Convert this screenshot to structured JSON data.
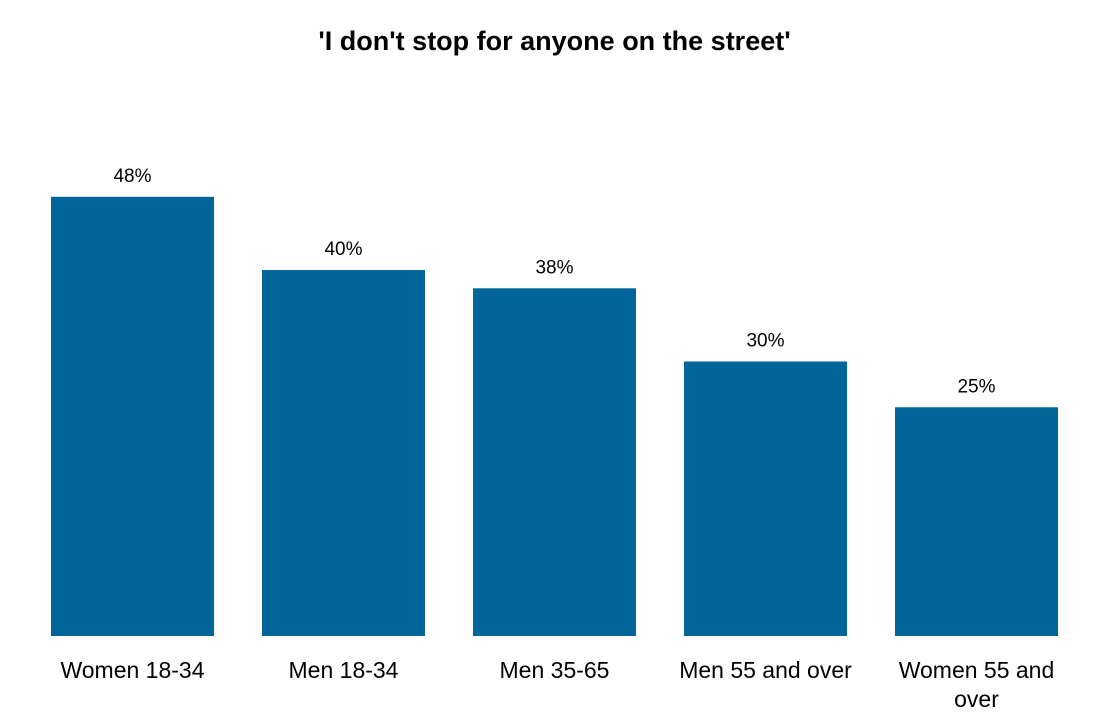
{
  "chart_data": {
    "type": "bar",
    "title": "'I don't stop for anyone on the street'",
    "categories": [
      "Women 18-34",
      "Men 18-34",
      "Men 35-65",
      "Men 55 and over",
      "Women 55 and over"
    ],
    "values": [
      48,
      40,
      38,
      30,
      25
    ],
    "value_labels": [
      "48%",
      "40%",
      "38%",
      "30%",
      "25%"
    ],
    "unit": "%",
    "xlabel": "",
    "ylabel": "",
    "ylim": [
      0,
      50
    ],
    "grid": false,
    "legend": "none",
    "bar_color": "#006699"
  }
}
